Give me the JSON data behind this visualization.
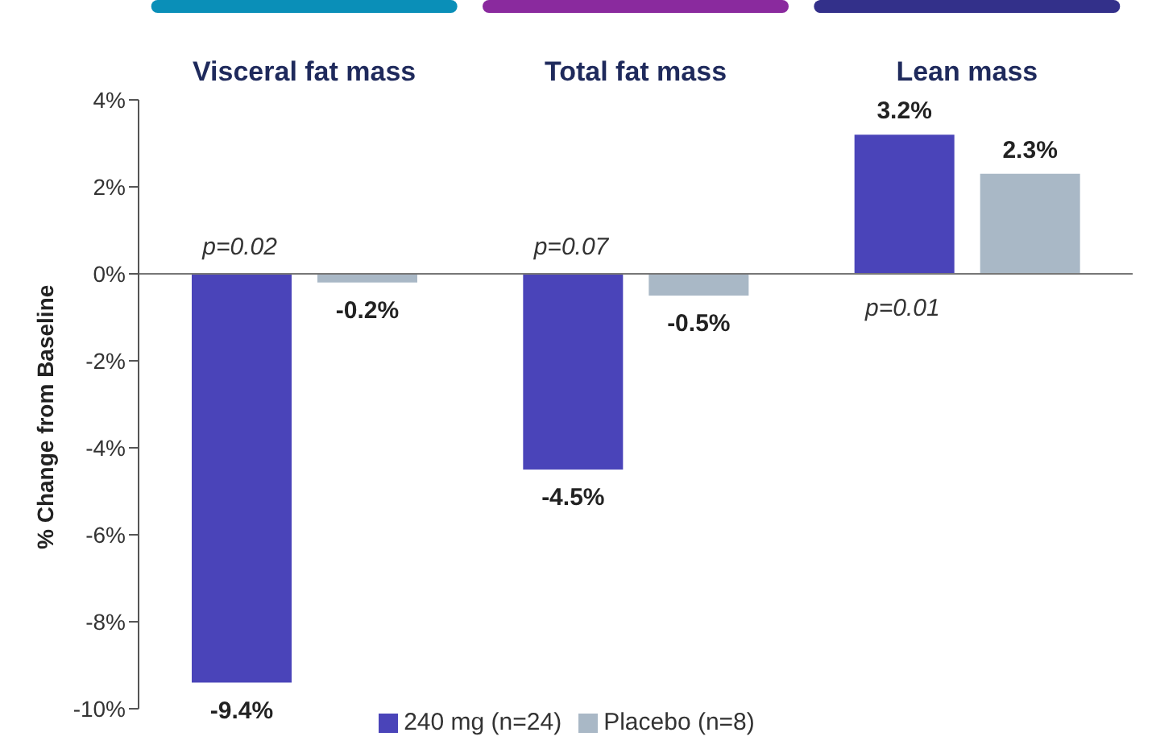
{
  "chart_data": {
    "type": "bar",
    "ylabel": "% Change from Baseline",
    "categories": [
      "Visceral fat mass",
      "Total fat mass",
      "Lean mass"
    ],
    "series": [
      {
        "name": "240 mg (n=24)",
        "color": "#4a44b9",
        "values": [
          -9.4,
          -4.5,
          3.2
        ],
        "value_labels": [
          "-9.4%",
          "-4.5%",
          "3.2%"
        ]
      },
      {
        "name": "Placebo (n=8)",
        "color": "#a9b8c6",
        "values": [
          -0.2,
          -0.5,
          2.3
        ],
        "value_labels": [
          "-0.2%",
          "-0.5%",
          "2.3%"
        ]
      }
    ],
    "ylim": [
      -10,
      4
    ],
    "yticks": [
      {
        "value": 4,
        "label": "4%"
      },
      {
        "value": 2,
        "label": "2%"
      },
      {
        "value": 0,
        "label": "0%"
      },
      {
        "value": -2,
        "label": "-2%"
      },
      {
        "value": -4,
        "label": "-4%"
      },
      {
        "value": -6,
        "label": "-6%"
      },
      {
        "value": -8,
        "label": "-8%"
      },
      {
        "value": -10,
        "label": "-10%"
      }
    ],
    "annotations": [
      "p=0.02",
      "p=0.07",
      "p=0.01"
    ],
    "legend": "bottom"
  }
}
